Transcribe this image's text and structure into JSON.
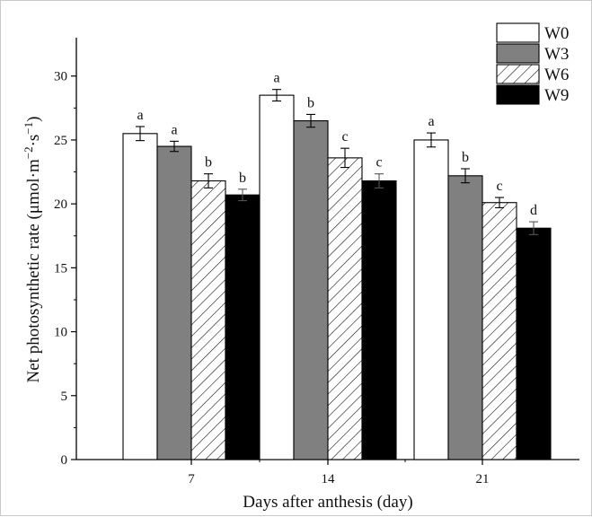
{
  "chart_data": {
    "type": "bar",
    "xlabel": "Days after anthesis (day)",
    "ylabel_main": "Net photosynthetic rate (μmol·m",
    "ylabel_sup1": "−2",
    "ylabel_mid": "·s",
    "ylabel_sup2": "−1",
    "ylabel_end": ")",
    "ylim": [
      0,
      33
    ],
    "yticks": [
      "0",
      "5",
      "10",
      "15",
      "20",
      "25",
      "30"
    ],
    "categories": [
      "7",
      "14",
      "21"
    ],
    "series": [
      {
        "name": "W0",
        "fill": "white",
        "values": [
          25.5,
          28.5,
          25.0
        ],
        "errors": [
          0.55,
          0.45,
          0.55
        ],
        "labels": [
          "a",
          "a",
          "a"
        ]
      },
      {
        "name": "W3",
        "fill": "gray",
        "values": [
          24.5,
          26.5,
          22.2
        ],
        "errors": [
          0.4,
          0.5,
          0.55
        ],
        "labels": [
          "a",
          "b",
          "b"
        ]
      },
      {
        "name": "W6",
        "fill": "hatch",
        "values": [
          21.8,
          23.6,
          20.1
        ],
        "errors": [
          0.55,
          0.75,
          0.4
        ],
        "labels": [
          "b",
          "c",
          "c"
        ]
      },
      {
        "name": "W9",
        "fill": "black",
        "values": [
          20.7,
          21.8,
          18.1
        ],
        "errors": [
          0.45,
          0.55,
          0.5
        ],
        "labels": [
          "b",
          "c",
          "d"
        ]
      }
    ],
    "legend_position": "top-right",
    "grid": false,
    "colors": {
      "white": "#ffffff",
      "gray": "#808080",
      "black": "#000000",
      "hatch": "#ffffff",
      "stroke": "#000000"
    }
  }
}
